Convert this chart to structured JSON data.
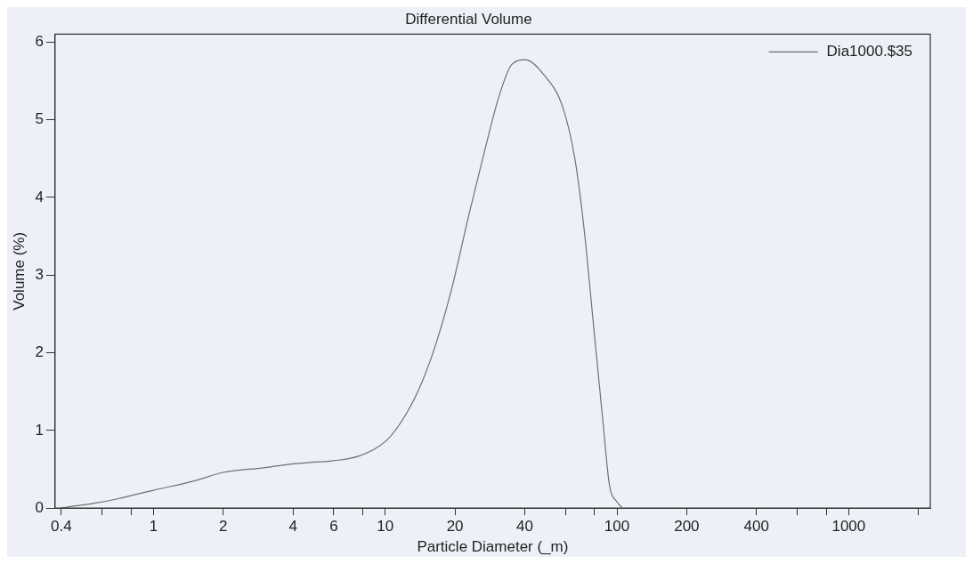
{
  "chart_data": {
    "type": "line",
    "title": "Differential Volume",
    "xlabel": "Particle Diameter (_m)",
    "ylabel": "Volume (%)",
    "log": "x",
    "grid": false,
    "legend": "top right",
    "marker": "none",
    "line_style": "solid",
    "xlim": [
      0.376,
      2250
    ],
    "ylim": [
      0,
      6.1
    ],
    "xticks": [
      0.4,
      {
        "value": 0.6,
        "label": null
      },
      {
        "value": 0.8,
        "label": null
      },
      1,
      2,
      4,
      6,
      {
        "value": 8,
        "label": null
      },
      10,
      20,
      40,
      {
        "value": 60,
        "label": null
      },
      {
        "value": 80,
        "label": null
      },
      100,
      200,
      400,
      {
        "value": 600,
        "label": null
      },
      {
        "value": 800,
        "label": null
      },
      1000,
      {
        "value": 2000,
        "label": null
      }
    ],
    "yticks": [
      0,
      1,
      2,
      3,
      4,
      5,
      6
    ],
    "series": [
      {
        "name": "Dia1000.$35",
        "color": "#707070",
        "x": [
          0.4,
          0.44,
          0.55,
          0.7,
          1,
          1.5,
          2,
          3,
          4,
          4.83,
          6,
          7.7,
          10.2,
          12.3,
          14.4,
          16.7,
          19.5,
          22.9,
          26.6,
          31.2,
          35.2,
          40.1,
          48.3,
          58.2,
          65.8,
          72.1,
          79.2,
          86.9,
          92.8,
          100,
          105
        ],
        "values": [
          0,
          0.02,
          0.06,
          0.12,
          0.23,
          0.35,
          0.46,
          0.52,
          0.57,
          0.59,
          0.61,
          0.67,
          0.88,
          1.21,
          1.62,
          2.15,
          2.86,
          3.76,
          4.55,
          5.33,
          5.71,
          5.77,
          5.58,
          5.17,
          4.5,
          3.6,
          2.36,
          1.13,
          0.3,
          0.08,
          0.01
        ]
      }
    ]
  }
}
